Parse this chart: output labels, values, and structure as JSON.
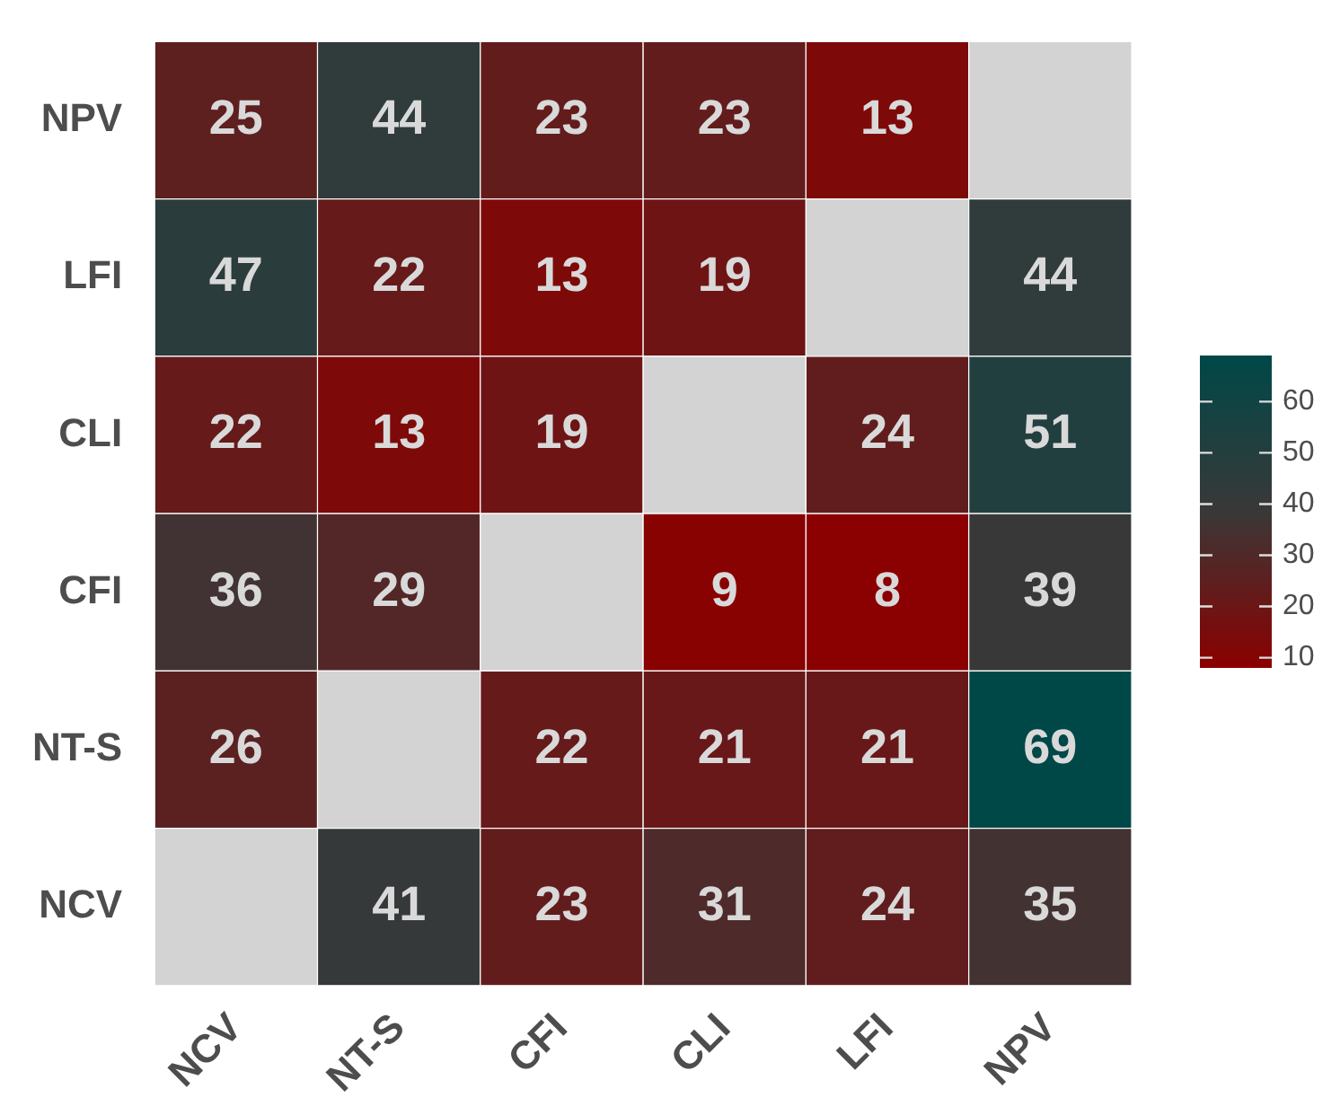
{
  "chart_data": {
    "type": "heatmap",
    "categories": [
      "NCV",
      "NT-S",
      "CFI",
      "CLI",
      "LFI",
      "NPV"
    ],
    "y_categories": [
      "NPV",
      "LFI",
      "CLI",
      "CFI",
      "NT-S",
      "NCV"
    ],
    "cells": [
      [
        25,
        44,
        23,
        23,
        13,
        null
      ],
      [
        47,
        22,
        13,
        19,
        null,
        44
      ],
      [
        22,
        13,
        19,
        null,
        24,
        51
      ],
      [
        36,
        29,
        null,
        9,
        8,
        39
      ],
      [
        26,
        null,
        22,
        21,
        21,
        69
      ],
      [
        null,
        41,
        23,
        31,
        24,
        35
      ]
    ],
    "data_labels": true,
    "clim": [
      8,
      69
    ],
    "cticks": [
      10,
      20,
      30,
      40,
      50,
      60
    ]
  }
}
